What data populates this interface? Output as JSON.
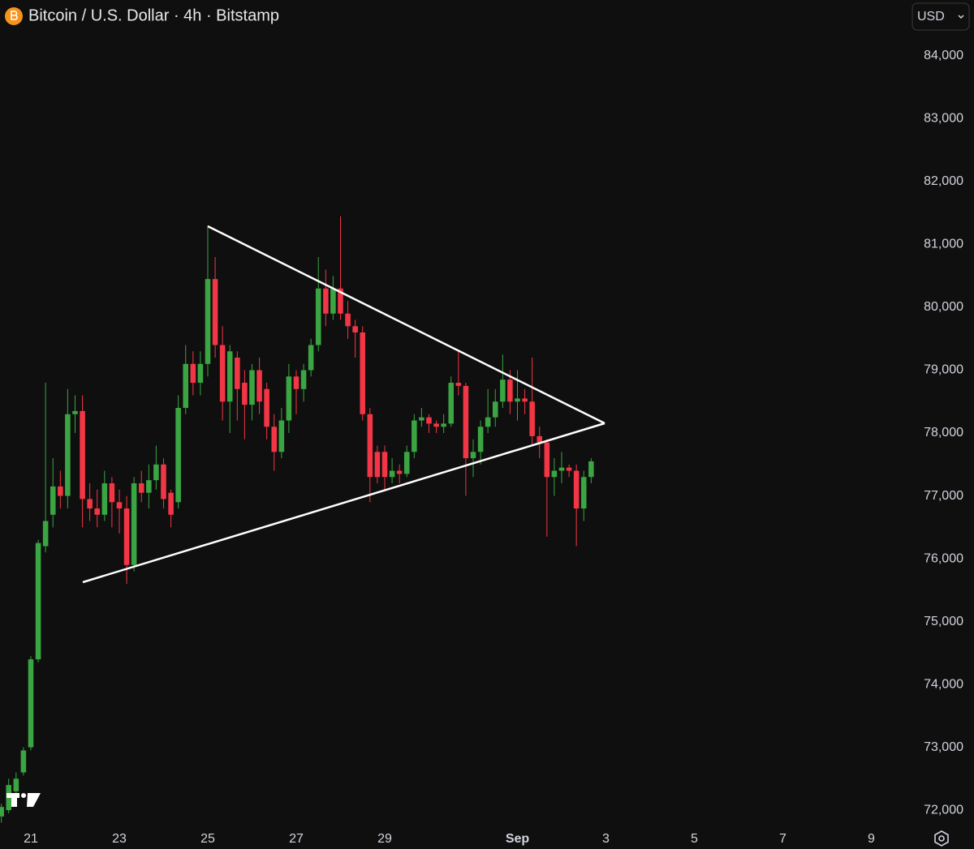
{
  "chart_data": {
    "type": "candlestick",
    "title": "Bitcoin / U.S. Dollar · 4h · Bitstamp",
    "currency": "USD",
    "up_color": "#3aa542",
    "down_color": "#f23645",
    "x": [
      20.333,
      20.5,
      20.667,
      20.833,
      21,
      21.167,
      21.333,
      21.5,
      21.667,
      21.833,
      22,
      22.167,
      22.333,
      22.5,
      22.667,
      22.833,
      23,
      23.167,
      23.333,
      23.5,
      23.667,
      23.833,
      24,
      24.167,
      24.333,
      24.5,
      24.667,
      24.833,
      25,
      25.167,
      25.333,
      25.5,
      25.667,
      25.833,
      26,
      26.167,
      26.333,
      26.5,
      26.667,
      26.833,
      27,
      27.167,
      27.333,
      27.5,
      27.667,
      27.833,
      28,
      28.167,
      28.333,
      28.5,
      28.667,
      28.833,
      29,
      29.167,
      29.333,
      29.5,
      29.667,
      29.833,
      30,
      30.167,
      30.333,
      30.5,
      30.667,
      30.833,
      31,
      31.167,
      31.333,
      31.5,
      31.667,
      31.833,
      32,
      32.167,
      32.333,
      32.5,
      32.667,
      32.833,
      33,
      33.167,
      33.333,
      33.5,
      33.667
    ],
    "open": [
      71900,
      72000,
      72300,
      72600,
      73000,
      74400,
      76200,
      76700,
      77150,
      77000,
      78300,
      78350,
      76950,
      76800,
      76700,
      77200,
      76900,
      76800,
      75900,
      77200,
      77050,
      77250,
      77500,
      77050,
      76900,
      78400,
      79100,
      78800,
      79100,
      80450,
      79400,
      78500,
      79200,
      78800,
      78450,
      79000,
      78700,
      78100,
      77700,
      78200,
      78900,
      78700,
      79000,
      79400,
      80300,
      79900,
      80300,
      79900,
      79700,
      79600,
      78300,
      77700,
      77700,
      77300,
      77400,
      77350,
      77700,
      78200,
      78250,
      78150,
      78100,
      78150,
      78800,
      78750,
      77600,
      77700,
      78100,
      78250,
      78500,
      78850,
      78500,
      78550,
      78500,
      77950,
      77850,
      77300,
      77400,
      77450,
      77400,
      76800,
      77300
    ],
    "high": [
      72100,
      72500,
      72600,
      73000,
      74450,
      76300,
      78800,
      77600,
      77400,
      78700,
      78600,
      78600,
      77200,
      77100,
      77400,
      77300,
      77100,
      77000,
      77300,
      77400,
      77500,
      77800,
      77600,
      77100,
      78600,
      79400,
      79300,
      79300,
      81300,
      80800,
      79700,
      79400,
      79300,
      79000,
      79100,
      79200,
      78800,
      78300,
      78400,
      79100,
      79000,
      79100,
      79500,
      80800,
      80600,
      80500,
      81450,
      80100,
      79800,
      79700,
      78400,
      77800,
      77800,
      77600,
      77500,
      77800,
      78300,
      78400,
      78300,
      78200,
      78300,
      78900,
      79300,
      78800,
      77900,
      78200,
      78700,
      78700,
      79250,
      79000,
      79000,
      78700,
      79200,
      78100,
      77900,
      77600,
      77700,
      77500,
      77500,
      77400,
      77600
    ],
    "low": [
      71800,
      71950,
      72200,
      72550,
      72950,
      74350,
      76100,
      76500,
      76800,
      76800,
      78000,
      76500,
      76600,
      76500,
      76600,
      76500,
      76400,
      75600,
      75800,
      76900,
      76800,
      77100,
      76800,
      76500,
      76800,
      78300,
      78600,
      78600,
      78900,
      79200,
      78200,
      78000,
      78200,
      77900,
      78200,
      78300,
      77900,
      77400,
      77600,
      78000,
      78300,
      78500,
      78900,
      79300,
      79700,
      79800,
      79800,
      79500,
      79200,
      78200,
      76900,
      77200,
      77100,
      77200,
      77200,
      77300,
      77600,
      78100,
      78000,
      78000,
      78000,
      78100,
      78600,
      77000,
      77300,
      77500,
      78000,
      78100,
      78400,
      78300,
      78200,
      78300,
      77800,
      77600,
      76350,
      77000,
      77200,
      77300,
      76200,
      76600,
      77200
    ],
    "close": [
      72050,
      72400,
      72500,
      72950,
      74400,
      76250,
      76600,
      77150,
      77000,
      78300,
      78350,
      76950,
      76800,
      76700,
      77200,
      76900,
      76800,
      75900,
      77200,
      77050,
      77250,
      77500,
      76950,
      76700,
      78400,
      79100,
      78800,
      79100,
      80450,
      79400,
      78500,
      79300,
      78700,
      78450,
      79000,
      78500,
      78100,
      77700,
      78200,
      78900,
      78700,
      79000,
      79400,
      80300,
      79900,
      80300,
      79900,
      79700,
      79600,
      78300,
      77300,
      77300,
      77300,
      77400,
      77350,
      77700,
      78200,
      78250,
      78150,
      78100,
      78150,
      78800,
      78750,
      77600,
      77700,
      78100,
      78250,
      78500,
      78850,
      78500,
      78550,
      78500,
      77950,
      77850,
      77300,
      77400,
      77450,
      77400,
      76800,
      77300,
      77550
    ],
    "xlim": [
      20.303,
      40.67
    ],
    "xticks": [
      21,
      23,
      25,
      27,
      29,
      {
        "value": 32,
        "label": "Sep"
      },
      {
        "value": 34,
        "label": "3"
      },
      {
        "value": 36,
        "label": "5"
      },
      {
        "value": 38,
        "label": "7"
      },
      {
        "value": 40,
        "label": "9"
      }
    ],
    "ylim": [
      71730,
      84890
    ],
    "yticks": [
      {
        "value": 72000,
        "label": "72,000"
      },
      {
        "value": 73000,
        "label": "73,000"
      },
      {
        "value": 74000,
        "label": "74,000"
      },
      {
        "value": 75000,
        "label": "75,000"
      },
      {
        "value": 76000,
        "label": "76,000"
      },
      {
        "value": 77000,
        "label": "77,000"
      },
      {
        "value": 78000,
        "label": "78,000"
      },
      {
        "value": 79000,
        "label": "79,000"
      },
      {
        "value": 80000,
        "label": "80,000"
      },
      {
        "value": 81000,
        "label": "81,000"
      },
      {
        "value": 82000,
        "label": "82,000"
      },
      {
        "value": 83000,
        "label": "83,000"
      },
      {
        "value": 84000,
        "label": "84,000"
      }
    ]
  }
}
